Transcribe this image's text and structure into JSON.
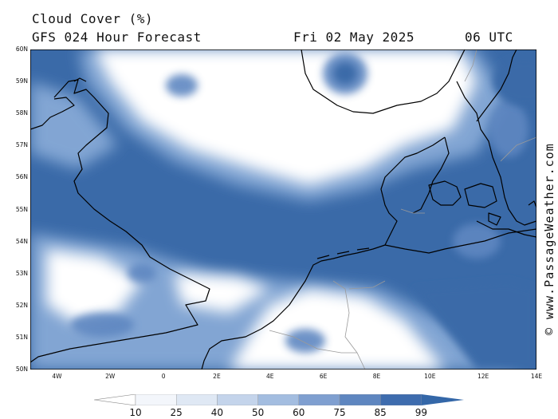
{
  "header": {
    "title": "Cloud Cover (%)",
    "subtitle": "GFS 024 Hour Forecast",
    "date": "Fri 02 May 2025",
    "time": "06 UTC"
  },
  "credit": "© www.PassageWeather.com",
  "map": {
    "lat_range": [
      50,
      60
    ],
    "lon_range": [
      -5,
      14
    ],
    "y_ticks": [
      "60N",
      "59N",
      "58N",
      "57N",
      "56N",
      "55N",
      "54N",
      "53N",
      "52N",
      "51N",
      "50N"
    ],
    "x_ticks": [
      "4W",
      "2W",
      "0",
      "2E",
      "4E",
      "6E",
      "8E",
      "10E",
      "12E",
      "14E"
    ],
    "colors": {
      "land_coast": "#000000",
      "border": "#9a9a9a",
      "clear": "#ffffff",
      "overcast": "#3a6aa8"
    }
  },
  "legend": {
    "labels": [
      "10",
      "25",
      "40",
      "50",
      "60",
      "75",
      "85",
      "99"
    ],
    "colors": [
      "#ffffff",
      "#f3f6fb",
      "#dfe8f4",
      "#c4d4eb",
      "#a3bde0",
      "#7f9fd0",
      "#5e86c0",
      "#3e6cae",
      "#3467a8"
    ]
  }
}
